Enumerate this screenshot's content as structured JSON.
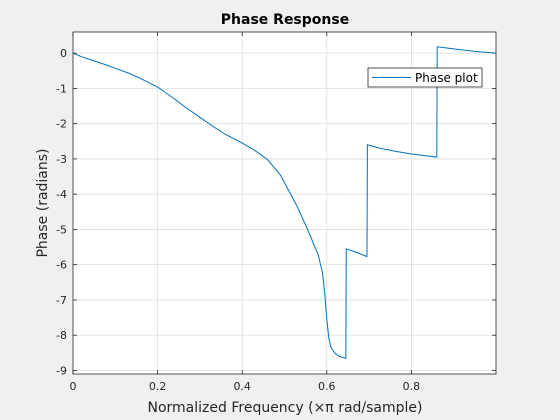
{
  "chart_data": {
    "type": "line",
    "title": "Phase Response",
    "xlabel": "Normalized Frequency (×π rad/sample)",
    "ylabel": "Phase (radians)",
    "xlim": [
      0,
      1
    ],
    "ylim": [
      -9.1,
      0.6
    ],
    "xticks": [
      0,
      0.2,
      0.4,
      0.6,
      0.8
    ],
    "xtick_labels": [
      "0",
      "0.2",
      "0.4",
      "0.6",
      "0.8"
    ],
    "yticks": [
      0,
      -1,
      -2,
      -3,
      -4,
      -5,
      -6,
      -7,
      -8,
      -9
    ],
    "ytick_labels": [
      "0",
      "-1",
      "-2",
      "-3",
      "-4",
      "-5",
      "-6",
      "-7",
      "-8",
      "-9"
    ],
    "grid": true,
    "legend_position": "top-right",
    "series": [
      {
        "name": "Phase plot",
        "color": "#0072bd",
        "x": [
          0,
          0.02,
          0.05,
          0.08,
          0.1,
          0.13,
          0.16,
          0.2,
          0.24,
          0.27,
          0.3,
          0.33,
          0.36,
          0.4,
          0.43,
          0.46,
          0.49,
          0.51,
          0.53,
          0.55,
          0.56,
          0.57,
          0.58,
          0.59,
          0.595,
          0.6,
          0.605,
          0.61,
          0.62,
          0.63,
          0.645,
          0.646,
          0.67,
          0.695,
          0.696,
          0.72,
          0.76,
          0.8,
          0.86,
          0.861,
          0.9,
          0.95,
          1.0
        ],
        "y": [
          0,
          -0.1,
          -0.22,
          -0.34,
          -0.43,
          -0.56,
          -0.72,
          -0.96,
          -1.3,
          -1.57,
          -1.82,
          -2.07,
          -2.3,
          -2.55,
          -2.76,
          -3.02,
          -3.45,
          -3.9,
          -4.35,
          -4.88,
          -5.15,
          -5.45,
          -5.73,
          -6.25,
          -6.8,
          -7.55,
          -8.1,
          -8.35,
          -8.52,
          -8.6,
          -8.66,
          -5.55,
          -5.65,
          -5.77,
          -2.6,
          -2.68,
          -2.78,
          -2.86,
          -2.95,
          0.18,
          0.12,
          0.05,
          0.0
        ]
      }
    ]
  }
}
